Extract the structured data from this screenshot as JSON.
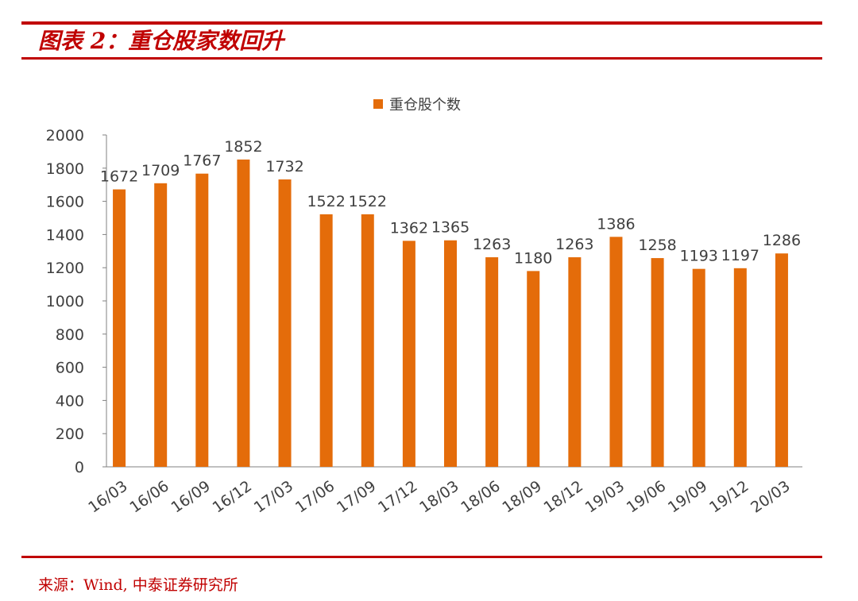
{
  "header": {
    "title": "图表 2：重仓股家数回升"
  },
  "footer": {
    "source": "来源：Wind, 中泰证券研究所"
  },
  "colors": {
    "accent": "#c00000",
    "bar": "#e46c0a",
    "text": "#404040"
  },
  "chart_data": {
    "type": "bar",
    "categories": [
      "16/03",
      "16/06",
      "16/09",
      "16/12",
      "17/03",
      "17/06",
      "17/09",
      "17/12",
      "18/03",
      "18/06",
      "18/09",
      "18/12",
      "19/03",
      "19/06",
      "19/09",
      "19/12",
      "20/03"
    ],
    "series": [
      {
        "name": "重仓股个数",
        "values": [
          1672,
          1709,
          1767,
          1852,
          1732,
          1522,
          1522,
          1362,
          1365,
          1263,
          1180,
          1263,
          1386,
          1258,
          1193,
          1197,
          1286
        ]
      }
    ],
    "ylim": [
      0,
      2000
    ],
    "yticks": [
      0,
      200,
      400,
      600,
      800,
      1000,
      1200,
      1400,
      1600,
      1800,
      2000
    ],
    "legend": "top-center",
    "grid": false
  }
}
